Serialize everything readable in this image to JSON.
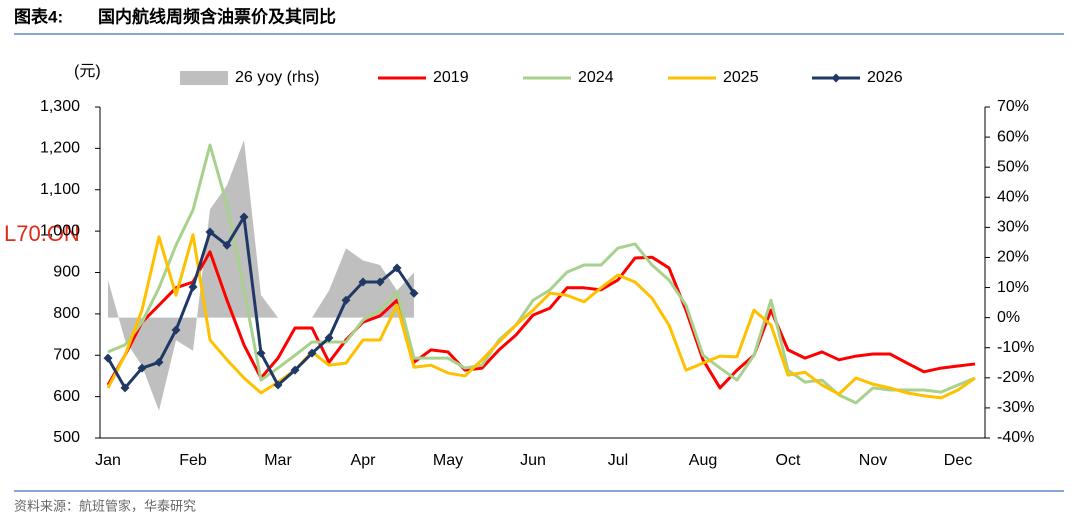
{
  "chart_data": {
    "type": "line",
    "label": "图表4:",
    "title": "国内航线周频含油票价及其同比",
    "y_label": "(元)",
    "source": "资料来源：航班管家，华泰研究",
    "annotation": "L70.ON",
    "legend": "top",
    "categories": [
      "Jan",
      null,
      null,
      null,
      null,
      "Feb",
      null,
      null,
      null,
      null,
      "Mar",
      null,
      null,
      null,
      null,
      "Apr",
      null,
      null,
      null,
      null,
      "May",
      null,
      null,
      null,
      null,
      "Jun",
      null,
      null,
      null,
      null,
      "Jul",
      null,
      null,
      null,
      null,
      "Aug",
      null,
      null,
      null,
      null,
      "Oct",
      null,
      null,
      null,
      null,
      "Nov",
      null,
      null,
      null,
      null,
      "Dec",
      null
    ],
    "ylim": [
      500,
      1300
    ],
    "yticks": [
      500,
      600,
      700,
      800,
      900,
      {
        "value": 1000,
        "label": "1,000"
      },
      {
        "value": 1100,
        "label": "1,100"
      },
      {
        "value": 1200,
        "label": "1,200"
      },
      {
        "value": 1300,
        "label": "1,300"
      }
    ],
    "y2lim": [
      -40,
      70
    ],
    "y2ticks": [
      {
        "value": -40,
        "label": "-40%"
      },
      {
        "value": -30,
        "label": "-30%"
      },
      {
        "value": -20,
        "label": "-20%"
      },
      {
        "value": -10,
        "label": "-10%"
      },
      {
        "value": 0,
        "label": "0%"
      },
      {
        "value": 10,
        "label": "10%"
      },
      {
        "value": 20,
        "label": "20%"
      },
      {
        "value": 30,
        "label": "30%"
      },
      {
        "value": 40,
        "label": "40%"
      },
      {
        "value": 50,
        "label": "50%"
      },
      {
        "value": 60,
        "label": "60%"
      },
      {
        "value": 70,
        "label": "70%"
      }
    ],
    "series": [
      {
        "name": "26 yoy (rhs)",
        "type": "area",
        "axis": "y2",
        "color": "#bfbfbf",
        "values": [
          12.5,
          -7.5,
          -16,
          -31,
          -7.5,
          -11,
          36,
          44,
          59,
          7.5,
          0,
          0,
          0,
          9,
          23,
          19,
          17.5,
          9,
          15,
          null,
          null,
          null,
          null,
          null,
          null,
          null,
          null,
          null,
          null,
          null,
          null,
          null,
          null,
          null,
          null,
          null,
          null,
          null,
          null,
          null,
          null,
          null,
          null,
          null,
          null,
          null,
          null,
          null,
          null,
          null,
          null,
          null
        ]
      },
      {
        "name": "2019",
        "color": "#ff0000",
        "values": [
          628,
          700,
          780,
          821,
          863,
          877,
          950,
          833,
          725,
          645,
          693,
          766,
          766,
          683,
          737,
          780,
          795,
          833,
          683,
          713,
          708,
          664,
          669,
          713,
          749,
          797,
          814,
          863,
          863,
          858,
          882,
          935,
          937,
          911,
          809,
          689,
          621,
          664,
          700,
          809,
          713,
          693,
          708,
          689,
          698,
          703,
          703,
          681,
          660,
          669,
          674,
          679
        ]
      },
      {
        "name": "2024",
        "color": "#a9d18e",
        "values": [
          708,
          725,
          780,
          863,
          966,
          1051,
          1208,
          1063,
          858,
          640,
          669,
          700,
          732,
          732,
          732,
          785,
          809,
          853,
          693,
          693,
          693,
          669,
          676,
          737,
          773,
          833,
          858,
          901,
          918,
          918,
          959,
          969,
          918,
          882,
          821,
          700,
          669,
          640,
          700,
          833,
          664,
          635,
          640,
          604,
          585,
          621,
          616,
          616,
          616,
          611,
          628,
          645
        ]
      },
      {
        "name": "2025",
        "color": "#ffc000",
        "values": [
          621,
          700,
          809,
          986,
          845,
          991,
          737,
          689,
          645,
          609,
          635,
          664,
          708,
          676,
          681,
          737,
          737,
          821,
          671,
          676,
          657,
          650,
          689,
          732,
          773,
          809,
          850,
          845,
          829,
          863,
          894,
          877,
          838,
          773,
          664,
          681,
          698,
          696,
          809,
          773,
          652,
          659,
          628,
          606,
          645,
          630,
          621,
          609,
          602,
          597,
          616,
          645
        ]
      },
      {
        "name": "2026",
        "color": "#203864",
        "marker": "diamond",
        "values": [
          693,
          621,
          669,
          683,
          761,
          865,
          998,
          966,
          1034,
          705,
          628,
          664,
          705,
          742,
          833,
          877,
          877,
          911,
          850,
          null,
          null,
          null,
          null,
          null,
          null,
          null,
          null,
          null,
          null,
          null,
          null,
          null,
          null,
          null,
          null,
          null,
          null,
          null,
          null,
          null,
          null,
          null,
          null,
          null,
          null,
          null,
          null,
          null,
          null,
          null,
          null,
          null
        ]
      }
    ]
  }
}
